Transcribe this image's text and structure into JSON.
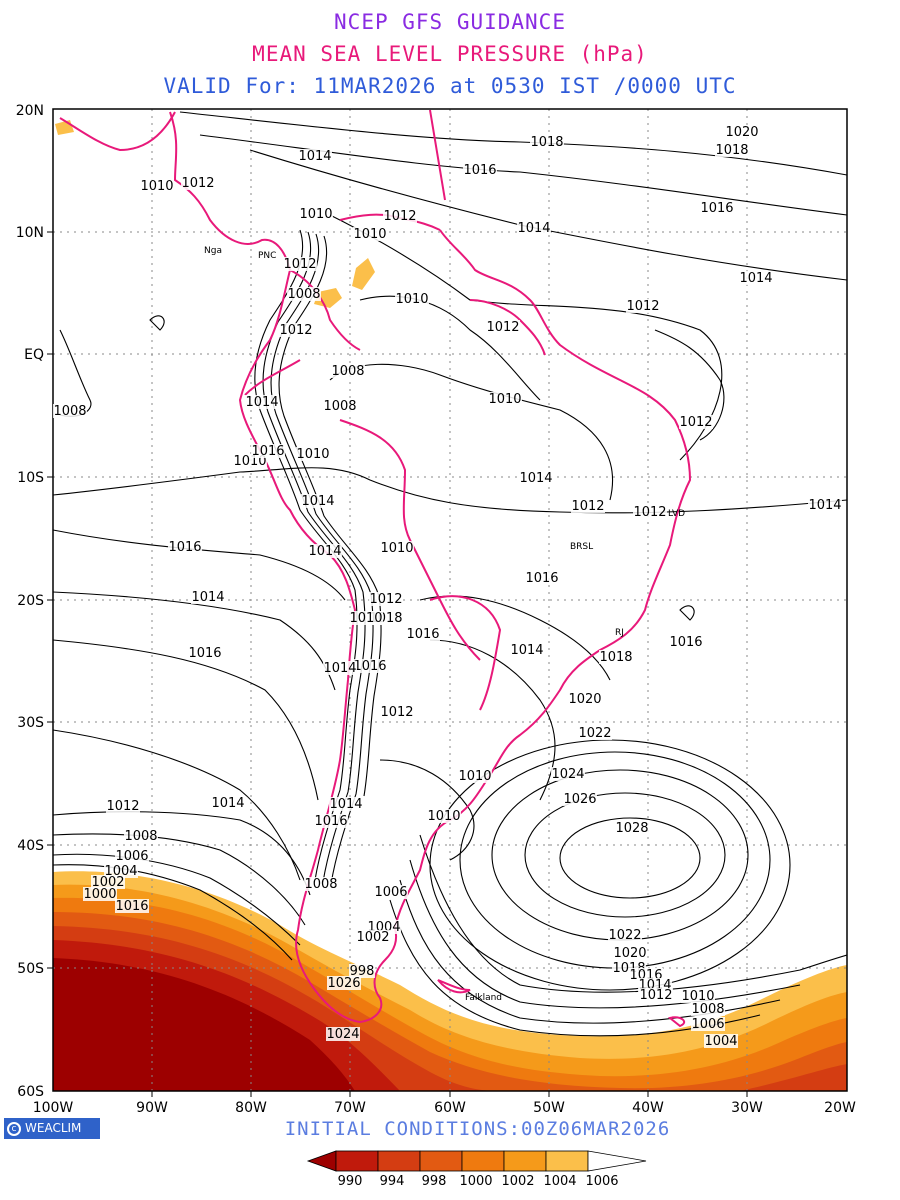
{
  "header": {
    "line1": "NCEP GFS GUIDANCE",
    "line2": "MEAN SEA LEVEL PRESSURE (hPa)",
    "line3": "VALID For: 11MAR2026 at 0530 IST /0000 UTC"
  },
  "map": {
    "lat_labels": [
      "20N",
      "10N",
      "EQ",
      "10S",
      "20S",
      "30S",
      "40S",
      "50S",
      "60S"
    ],
    "lon_labels": [
      "100W",
      "90W",
      "80W",
      "70W",
      "60W",
      "50W",
      "40W",
      "30W",
      "20W"
    ],
    "grid": "dotted",
    "contour_labels": [
      "1014",
      "1018",
      "1020",
      "1018",
      "1016",
      "1016",
      "1014",
      "1014",
      "1010",
      "1012",
      "1010",
      "1012",
      "1010",
      "1012",
      "1008",
      "1012",
      "1010",
      "1012",
      "1012",
      "1008",
      "1008",
      "1008",
      "1014",
      "1010",
      "1010",
      "1016",
      "1010",
      "1012",
      "1014",
      "1014",
      "1010",
      "1014",
      "1012",
      "1012",
      "1014",
      "1016",
      "1016",
      "1012",
      "1014",
      "1018",
      "1016",
      "1010",
      "1016",
      "1016",
      "1014",
      "1018",
      "1014",
      "1016",
      "1012",
      "1020",
      "1022",
      "1024",
      "1026",
      "1028",
      "1012",
      "1014",
      "1014",
      "1016",
      "1010",
      "1008",
      "1006",
      "1004",
      "1002",
      "1000",
      "1016",
      "1010",
      "1008",
      "1006",
      "1004",
      "1002",
      "998",
      "1026",
      "1024",
      "1022",
      "1020",
      "1018",
      "1016",
      "1014",
      "1012",
      "1010",
      "1008",
      "1006",
      "1004"
    ],
    "station_labels": [
      "Nga",
      "PNC",
      "LVD",
      "BRSL",
      "RJ",
      "Falkland"
    ],
    "high_pressure_center": "1028",
    "colors": {
      "land_outline": "#e8197a",
      "contour": "#000000",
      "fill_1006": "#fbbf4a",
      "fill_1004": "#f59a1a",
      "fill_1002": "#ef7a0f",
      "fill_1000": "#e25a12",
      "fill_998": "#d43d12",
      "fill_994": "#c01a0c",
      "fill_990": "#9d0000"
    }
  },
  "footer": {
    "logo_text": "WEACLIM",
    "initial_conditions": "INITIAL CONDITIONS:00Z06MAR2026"
  },
  "legend": {
    "ticks": [
      "990",
      "994",
      "998",
      "1000",
      "1002",
      "1004",
      "1006"
    ],
    "colors": [
      "#9d0000",
      "#c01a0c",
      "#d43d12",
      "#e25a12",
      "#ef7a0f",
      "#f59a1a",
      "#fbbf4a",
      "#ffffff"
    ]
  }
}
